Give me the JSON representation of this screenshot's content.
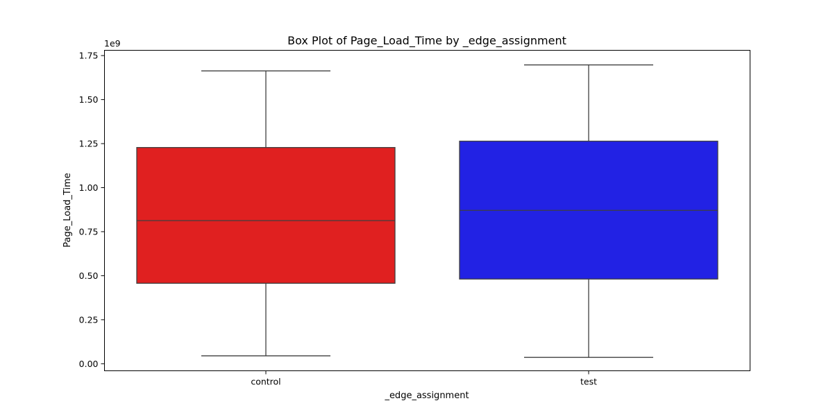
{
  "chart_data": {
    "type": "box",
    "title": "Box Plot of Page_Load_Time by _edge_assignment",
    "xlabel": "_edge_assignment",
    "ylabel": "Page_Load_Time",
    "y_offset_label": "1e9",
    "ylim": [
      -0.04,
      1.78
    ],
    "yticks": [
      0.0,
      0.25,
      0.5,
      0.75,
      1.0,
      1.25,
      1.5,
      1.75
    ],
    "ytick_labels": [
      "0.00",
      "0.25",
      "0.50",
      "0.75",
      "1.00",
      "1.25",
      "1.50",
      "1.75"
    ],
    "categories": [
      "control",
      "test"
    ],
    "series": [
      {
        "name": "control",
        "color": "#e02020",
        "whisker_low": 0.045,
        "q1": 0.457,
        "median": 0.813,
        "q3": 1.228,
        "whisker_high": 1.663
      },
      {
        "name": "test",
        "color": "#2222e4",
        "whisker_low": 0.036,
        "q1": 0.481,
        "median": 0.871,
        "q3": 1.264,
        "whisker_high": 1.697
      }
    ]
  }
}
